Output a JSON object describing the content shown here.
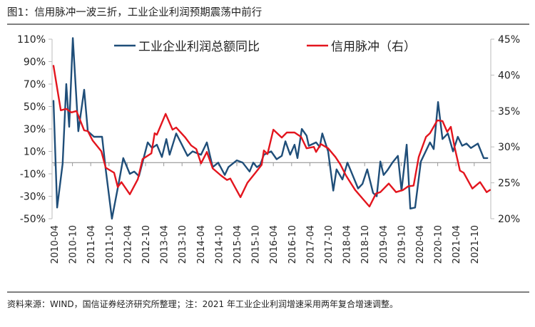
{
  "title": "图1：信用脉冲一波三折，工业企业利润预期震荡中前行",
  "source": "资料来源：WIND，国信证券经济研究所整理；注：2021 年工业企业利润增速采用两年复合增速调整。",
  "chart_data": {
    "type": "line",
    "title": "图1：信用脉冲一波三折，工业企业利润预期震荡中前行",
    "xlabel": "",
    "x_tick_labels": [
      "2010-04",
      "2010-10",
      "2011-04",
      "2011-10",
      "2012-04",
      "2012-10",
      "2013-04",
      "2013-10",
      "2014-04",
      "2014-10",
      "2015-04",
      "2015-10",
      "2016-04",
      "2016-10",
      "2017-04",
      "2017-10",
      "2018-04",
      "2018-10",
      "2019-04",
      "2019-10",
      "2020-04",
      "2020-10",
      "2021-04",
      "2021-10"
    ],
    "x_tick_values": [
      2010.25,
      2010.75,
      2011.25,
      2011.75,
      2012.25,
      2012.75,
      2013.25,
      2013.75,
      2014.25,
      2014.75,
      2015.25,
      2015.75,
      2016.25,
      2016.75,
      2017.25,
      2017.75,
      2018.25,
      2018.75,
      2019.25,
      2019.75,
      2020.25,
      2020.75,
      2021.25,
      2021.75
    ],
    "xlim": [
      2010.2,
      2022.2
    ],
    "y_left": {
      "ylim": [
        -50,
        110
      ],
      "ticks": [
        110,
        90,
        70,
        50,
        30,
        10,
        -10,
        -30,
        -50
      ],
      "tick_labels": [
        "110%",
        "90%",
        "70%",
        "50%",
        "30%",
        "10%",
        "-10%",
        "-30%",
        "-50%"
      ]
    },
    "y_right": {
      "ylim": [
        20,
        45
      ],
      "ticks": [
        45,
        40,
        35,
        30,
        25,
        20
      ],
      "tick_labels": [
        "45%",
        "40%",
        "35%",
        "30%",
        "25%",
        "20%"
      ]
    },
    "legend_position": "top",
    "series": [
      {
        "name": "工业企业利润总额同比",
        "axis": "left",
        "color": "#1f4e79",
        "x": [
          2010.23,
          2010.33,
          2010.48,
          2010.58,
          2010.66,
          2010.76,
          2010.91,
          2011.07,
          2011.17,
          2011.34,
          2011.56,
          2011.66,
          2011.83,
          2012.03,
          2012.14,
          2012.32,
          2012.44,
          2012.57,
          2012.81,
          2012.93,
          2013.06,
          2013.2,
          2013.32,
          2013.41,
          2013.59,
          2013.9,
          2014.04,
          2014.27,
          2014.43,
          2014.59,
          2014.74,
          2014.92,
          2015.02,
          2015.25,
          2015.41,
          2015.6,
          2015.7,
          2015.8,
          2015.89,
          2015.99,
          2016.19,
          2016.34,
          2016.48,
          2016.58,
          2016.71,
          2016.83,
          2016.91,
          2017.03,
          2017.16,
          2017.22,
          2017.42,
          2017.52,
          2017.59,
          2017.75,
          2017.89,
          2017.98,
          2018.14,
          2018.28,
          2018.57,
          2018.69,
          2018.82,
          2018.98,
          2019.08,
          2019.18,
          2019.27,
          2019.37,
          2019.51,
          2019.66,
          2019.76,
          2019.9,
          2020.0,
          2020.13,
          2020.29,
          2020.54,
          2020.64,
          2020.76,
          2020.88,
          2021.03,
          2021.17,
          2021.3,
          2021.42,
          2021.54,
          2021.66,
          2021.85,
          2022.01,
          2022.11
        ],
        "values": [
          55,
          -40,
          -1,
          70,
          32,
          111,
          28,
          65,
          28,
          23,
          23,
          -6,
          -50,
          -16,
          4,
          -10,
          -8,
          -12,
          18,
          13,
          16,
          5,
          21,
          7,
          26,
          6,
          10,
          7,
          18,
          -4,
          0,
          -11,
          -4,
          2,
          0,
          -8,
          0,
          -4,
          -2,
          7,
          10,
          3,
          6,
          19,
          7,
          16,
          4,
          30,
          24,
          15,
          18,
          14,
          26,
          10,
          -25,
          -6,
          -15,
          0,
          -23,
          -19,
          -6,
          -27,
          -30,
          1,
          -11,
          -7,
          0,
          6,
          -25,
          16,
          -41,
          -40,
          1,
          18,
          12,
          54,
          21,
          26,
          10,
          23,
          15,
          17,
          13,
          17,
          4,
          4
        ]
      },
      {
        "name": "信用脉冲（右）",
        "axis": "right",
        "color": "#e3151e",
        "x": [
          2010.23,
          2010.43,
          2010.58,
          2010.72,
          2010.86,
          2011.07,
          2011.17,
          2011.3,
          2011.54,
          2011.66,
          2011.89,
          2011.99,
          2012.09,
          2012.32,
          2012.54,
          2012.67,
          2012.91,
          2013.0,
          2013.06,
          2013.3,
          2013.49,
          2013.59,
          2013.84,
          2014.0,
          2014.14,
          2014.27,
          2014.43,
          2014.59,
          2014.82,
          2014.98,
          2015.07,
          2015.35,
          2015.54,
          2015.76,
          2015.93,
          2015.99,
          2016.09,
          2016.25,
          2016.48,
          2016.62,
          2016.83,
          2017.01,
          2017.16,
          2017.36,
          2017.42,
          2017.55,
          2017.75,
          2017.95,
          2018.08,
          2018.24,
          2018.49,
          2018.88,
          2019.06,
          2019.18,
          2019.41,
          2019.61,
          2019.8,
          2019.94,
          2020.09,
          2020.23,
          2020.43,
          2020.54,
          2020.74,
          2020.88,
          2021.01,
          2021.11,
          2021.21,
          2021.36,
          2021.46,
          2021.7,
          2021.91,
          2022.09,
          2022.18
        ],
        "values": [
          41.3,
          35.1,
          35.3,
          34.8,
          35,
          32.3,
          32.2,
          30.9,
          29.4,
          27.1,
          26.4,
          24.4,
          25.1,
          23.4,
          25.5,
          28.3,
          29.1,
          31.9,
          31.7,
          34.6,
          32.4,
          32.7,
          31.3,
          30.2,
          29.7,
          27.7,
          29.3,
          27.0,
          26.0,
          25.4,
          25.6,
          23.0,
          25.0,
          26.4,
          27.5,
          29.5,
          29.0,
          32.4,
          31.3,
          32,
          32,
          31.4,
          29.8,
          30,
          29.3,
          30.4,
          29.8,
          28.6,
          27.6,
          26.0,
          24.0,
          21.7,
          23.5,
          23.7,
          24.9,
          23.7,
          24.0,
          24.5,
          24.6,
          28.6,
          31.4,
          31.9,
          33.7,
          33.6,
          32.1,
          32.8,
          30,
          26.7,
          26.4,
          24.2,
          25.1,
          23.7,
          24.0
        ]
      }
    ]
  }
}
